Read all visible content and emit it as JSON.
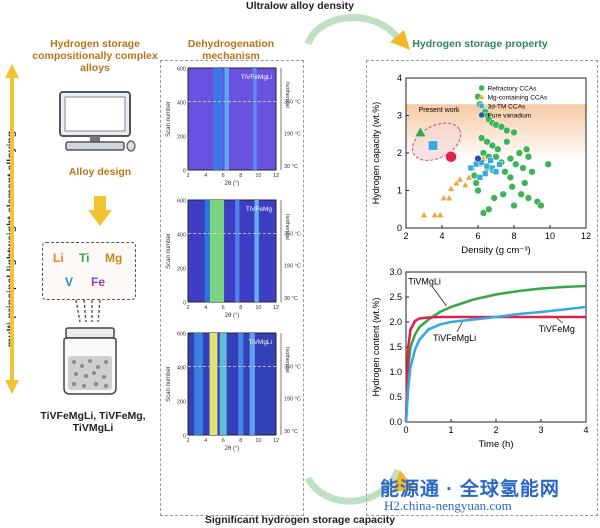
{
  "top_title": "Ultralow alloy density",
  "bottom_title": "Significant hydrogen storage capacity",
  "left": {
    "title": "Hydrogen storage compositionally complex alloys",
    "title_color": "#b8741a",
    "side_label": "multi-principal-lightweight element alloying",
    "design_label": "Alloy design",
    "elements": [
      {
        "symbol": "Li",
        "color": "#f07e2a"
      },
      {
        "symbol": "Ti",
        "color": "#3aa64a"
      },
      {
        "symbol": "Mg",
        "color": "#c68a18"
      },
      {
        "symbol": "V",
        "color": "#2e86d6"
      },
      {
        "symbol": "Fe",
        "color": "#8a3fc4"
      }
    ],
    "alloys": "TiVFeMgLi, TiVFeMg, TiVMgLi"
  },
  "middle": {
    "title": "Dehydrogenation mechanism",
    "title_color": "#b8741a",
    "maps": [
      {
        "label": "TiVFeMgLi",
        "yticks": [
          "600",
          "400",
          "200",
          "0"
        ],
        "xticks": [
          "2",
          "4",
          "6",
          "8",
          "10",
          "12"
        ],
        "temps": [
          "350 °C",
          "190 °C",
          "30 °C"
        ],
        "iso": "Isothermal",
        "xlabel": "2θ (°)",
        "ylabel": "Scan number"
      },
      {
        "label": "TiVFeMg",
        "yticks": [
          "600",
          "400",
          "200",
          "0"
        ],
        "xticks": [
          "2",
          "4",
          "6",
          "8",
          "10",
          "12"
        ],
        "temps": [
          "350 °C",
          "190 °C",
          "30 °C"
        ],
        "iso": "Isothermal",
        "xlabel": "2θ (°)",
        "ylabel": "Scan number"
      },
      {
        "label": "TiVMgLi",
        "yticks": [
          "600",
          "400",
          "200",
          "0"
        ],
        "xticks": [
          "2",
          "4",
          "6",
          "8",
          "10",
          "12"
        ],
        "temps": [
          "350 °C",
          "190 °C",
          "30 °C"
        ],
        "iso": "Isothermal",
        "xlabel": "2θ (°)",
        "ylabel": "Scan number"
      }
    ]
  },
  "right": {
    "title": "Hydrogen storage property",
    "title_color": "#2d8a4e"
  },
  "watermark": {
    "cn": "能源通 · 全球氢能网",
    "en": "H2.china-nengyuan.com"
  },
  "chart_data": [
    {
      "type": "scatter",
      "xlabel": "Density (g cm⁻³)",
      "ylabel": "Hydrogen capacity (wt.%)",
      "xlim": [
        2,
        12
      ],
      "ylim": [
        0,
        4
      ],
      "xticks": [
        2,
        4,
        6,
        8,
        10,
        12
      ],
      "yticks": [
        0,
        1,
        2,
        3,
        4
      ],
      "legend": "top-right",
      "annotation": "Present work",
      "series": [
        {
          "name": "Refractory CCAs",
          "color": "#3db35a",
          "marker": "circle",
          "points": [
            [
              6.0,
              3.5
            ],
            [
              6.1,
              3.3
            ],
            [
              6.4,
              3.1
            ],
            [
              6.5,
              3.0
            ],
            [
              6.6,
              2.9
            ],
            [
              6.8,
              2.8
            ],
            [
              7.0,
              2.75
            ],
            [
              7.3,
              2.7
            ],
            [
              7.6,
              2.6
            ],
            [
              8.0,
              2.55
            ],
            [
              6.2,
              2.4
            ],
            [
              6.5,
              2.3
            ],
            [
              6.8,
              2.2
            ],
            [
              7.1,
              2.1
            ],
            [
              6.3,
              2.0
            ],
            [
              6.6,
              1.9
            ],
            [
              7.0,
              1.9
            ],
            [
              7.3,
              1.75
            ],
            [
              7.8,
              1.85
            ],
            [
              8.1,
              1.7
            ],
            [
              8.5,
              1.6
            ],
            [
              9.0,
              1.5
            ],
            [
              9.9,
              1.7
            ],
            [
              8.3,
              2.0
            ],
            [
              8.7,
              2.1
            ],
            [
              7.5,
              1.5
            ],
            [
              7.8,
              1.35
            ],
            [
              6.5,
              1.6
            ],
            [
              6.8,
              1.55
            ],
            [
              7.9,
              1.1
            ],
            [
              8.4,
              0.9
            ],
            [
              8.8,
              0.8
            ],
            [
              9.3,
              0.7
            ],
            [
              6.6,
              0.5
            ],
            [
              6.3,
              0.4
            ],
            [
              6.9,
              0.8
            ],
            [
              7.4,
              0.9
            ],
            [
              8.0,
              0.6
            ],
            [
              5.8,
              1.4
            ],
            [
              5.9,
              1.2
            ],
            [
              6.0,
              1.0
            ],
            [
              8.6,
              1.2
            ],
            [
              9.5,
              0.6
            ],
            [
              7.6,
              2.3
            ],
            [
              8.8,
              1.9
            ]
          ]
        },
        {
          "name": "Mg-containing CCAs",
          "color": "#f2a33c",
          "marker": "triangle",
          "points": [
            [
              3.0,
              0.35
            ],
            [
              3.6,
              0.35
            ],
            [
              3.9,
              0.35
            ],
            [
              4.1,
              0.8
            ],
            [
              4.4,
              0.8
            ],
            [
              4.5,
              1.05
            ],
            [
              4.8,
              1.2
            ],
            [
              5.0,
              1.3
            ],
            [
              5.3,
              1.15
            ],
            [
              5.5,
              1.35
            ],
            [
              5.7,
              1.6
            ],
            [
              5.9,
              1.8
            ],
            [
              6.1,
              1.7
            ],
            [
              6.3,
              1.85
            ]
          ]
        },
        {
          "name": "3d-TM CCAs",
          "color": "#35a9e0",
          "marker": "square",
          "points": [
            [
              5.6,
              1.6
            ],
            [
              5.9,
              1.7
            ],
            [
              6.2,
              1.75
            ],
            [
              6.5,
              1.65
            ],
            [
              6.8,
              1.6
            ],
            [
              7.0,
              1.5
            ],
            [
              6.4,
              1.45
            ],
            [
              6.1,
              1.35
            ],
            [
              6.7,
              1.8
            ],
            [
              7.2,
              1.7
            ]
          ]
        },
        {
          "name": "Pure vanadium",
          "color": "#2f4fa8",
          "marker": "circle",
          "points": [
            [
              6.0,
              1.85
            ]
          ]
        },
        {
          "name": "Present work",
          "color": "#e0214e",
          "marker": "mixed",
          "points": [
            [
              2.8,
              2.55
            ],
            [
              3.5,
              2.2
            ],
            [
              4.5,
              1.9
            ]
          ]
        }
      ]
    },
    {
      "type": "line",
      "xlabel": "Time (h)",
      "ylabel": "Hydrogen content (wt.%)",
      "xlim": [
        0,
        4
      ],
      "ylim": [
        0,
        3
      ],
      "xticks": [
        0,
        1,
        2,
        3,
        4
      ],
      "yticks": [
        0.0,
        0.5,
        1.0,
        1.5,
        2.0,
        2.5,
        3.0
      ],
      "series": [
        {
          "name": "TiVMgLi",
          "color": "#3aa64a",
          "x": [
            0,
            0.05,
            0.1,
            0.2,
            0.3,
            0.5,
            0.75,
            1.0,
            1.5,
            2.0,
            2.5,
            3.0,
            3.5,
            4.0
          ],
          "y": [
            0,
            1.1,
            1.5,
            1.75,
            1.9,
            2.05,
            2.2,
            2.3,
            2.45,
            2.55,
            2.62,
            2.67,
            2.7,
            2.72
          ]
        },
        {
          "name": "TiVFeMg",
          "color": "#e0214e",
          "x": [
            0,
            0.05,
            0.1,
            0.2,
            0.3,
            0.5,
            0.75,
            1.0,
            1.5,
            2.0,
            2.5,
            3.0,
            3.5,
            4.0
          ],
          "y": [
            0,
            1.5,
            1.85,
            2.02,
            2.07,
            2.09,
            2.1,
            2.1,
            2.1,
            2.1,
            2.1,
            2.1,
            2.1,
            2.1
          ]
        },
        {
          "name": "TiVFeMgLi",
          "color": "#35a9e0",
          "x": [
            0,
            0.05,
            0.1,
            0.2,
            0.3,
            0.5,
            0.75,
            1.0,
            1.5,
            2.0,
            2.5,
            3.0,
            3.5,
            4.0
          ],
          "y": [
            0,
            0.7,
            1.1,
            1.45,
            1.65,
            1.85,
            1.95,
            2.0,
            2.05,
            2.1,
            2.16,
            2.2,
            2.25,
            2.3
          ]
        }
      ]
    }
  ]
}
